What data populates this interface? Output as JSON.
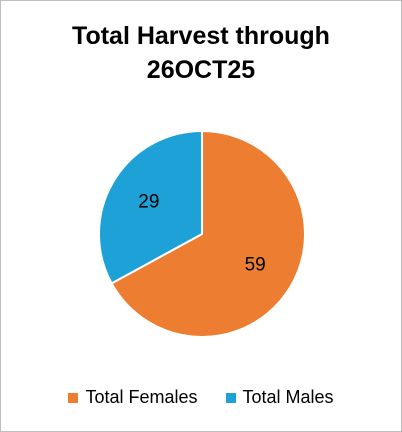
{
  "chart_data": {
    "type": "pie",
    "title_lines": [
      "Total Harvest through",
      "26OCT25"
    ],
    "categories": [
      "Total Females",
      "Total Males"
    ],
    "values": [
      59,
      29
    ],
    "data_labels": [
      "59",
      "29"
    ],
    "colors": [
      "#ED7D31",
      "#1DA1D6"
    ],
    "legend_position": "bottom",
    "start_angle_deg": 0,
    "direction": "clockwise"
  }
}
